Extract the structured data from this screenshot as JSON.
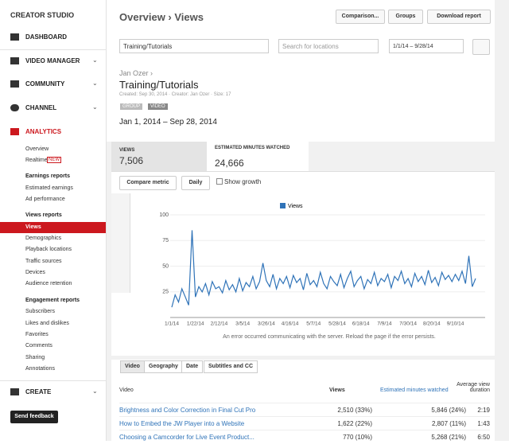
{
  "sidebar": {
    "brand": "CREATOR STUDIO",
    "dashboard": "DASHBOARD",
    "video_manager": "VIDEO MANAGER",
    "community": "COMMUNITY",
    "channel": "CHANNEL",
    "analytics": "ANALYTICS",
    "overview": "Overview",
    "realtime": "Realtime",
    "new_badge": "NEW",
    "earnings_reports": "Earnings reports",
    "earnings_links": [
      "Estimated earnings",
      "Ad performance"
    ],
    "views_reports": "Views reports",
    "views_links": [
      "Views",
      "Demographics",
      "Playback locations",
      "Traffic sources",
      "Devices",
      "Audience retention"
    ],
    "engagement_reports": "Engagement reports",
    "engagement_links": [
      "Subscribers",
      "Likes and dislikes",
      "Favorites",
      "Comments",
      "Sharing",
      "Annotations"
    ],
    "create": "CREATE",
    "send_feedback": "Send feedback"
  },
  "header": {
    "title": "Overview › Views",
    "buttons": [
      "Comparison...",
      "Groups",
      "Download report"
    ]
  },
  "filters": {
    "search_value": "Training/Tutorials",
    "location_placeholder": "Search for locations",
    "date_range": "1/1/14 – 9/28/14"
  },
  "group": {
    "owner": "Jan Ozer ›",
    "title": "Training/Tutorials",
    "meta": "Created: Sep 30, 2014 · Creator: Jan Ozer · Size: 17",
    "tags": [
      "GROUP",
      "VIDEO"
    ],
    "period": "Jan 1, 2014 – Sep 28, 2014"
  },
  "metrics": [
    {
      "label": "VIEWS",
      "value": "7,506"
    },
    {
      "label": "ESTIMATED MINUTES WATCHED",
      "value": "24,666"
    }
  ],
  "controls": {
    "compare": "Compare metric",
    "interval": "Daily",
    "growth": "Show growth"
  },
  "chart_data": {
    "type": "line",
    "ylim": [
      0,
      100
    ],
    "yticks": [
      25,
      50,
      75,
      100
    ],
    "categories": [
      "1/1/14",
      null,
      null,
      null,
      null,
      null,
      null,
      "1/22/14",
      null,
      null,
      null,
      null,
      null,
      null,
      "2/12/14",
      null,
      null,
      null,
      null,
      null,
      null,
      "3/5/14",
      null,
      null,
      null,
      null,
      null,
      null,
      "3/26/14",
      null,
      null,
      null,
      null,
      null,
      null,
      "4/16/14",
      null,
      null,
      null,
      null,
      null,
      null,
      "5/7/14",
      null,
      null,
      null,
      null,
      null,
      null,
      "5/28/14",
      null,
      null,
      null,
      null,
      null,
      null,
      "6/18/14",
      null,
      null,
      null,
      null,
      null,
      null,
      "7/9/14",
      null,
      null,
      null,
      null,
      null,
      null,
      "7/30/14",
      null,
      null,
      null,
      null,
      null,
      null,
      "8/20/14",
      null,
      null,
      null,
      null,
      null,
      null,
      "9/10/14",
      null,
      null,
      null,
      null,
      null,
      null
    ],
    "series": [
      {
        "name": "Views",
        "color": "#2f73b8",
        "values": [
          10,
          22,
          15,
          28,
          20,
          12,
          85,
          20,
          30,
          25,
          33,
          22,
          35,
          28,
          30,
          24,
          36,
          27,
          32,
          25,
          38,
          26,
          34,
          30,
          40,
          28,
          35,
          53,
          36,
          30,
          42,
          28,
          38,
          33,
          40,
          29,
          41,
          34,
          38,
          27,
          43,
          32,
          36,
          30,
          44,
          33,
          28,
          40,
          35,
          31,
          42,
          29,
          38,
          45,
          30,
          36,
          40,
          28,
          37,
          33,
          44,
          31,
          38,
          35,
          42,
          29,
          40,
          36,
          45,
          33,
          38,
          30,
          43,
          35,
          40,
          32,
          46,
          34,
          39,
          31,
          44,
          37,
          41,
          35,
          42,
          36,
          45,
          33,
          60,
          30,
          38
        ]
      }
    ],
    "error": "An error occurred communicating with the server. Reload the page if the error persists."
  },
  "tabs": [
    "Video",
    "Geography",
    "Date",
    "Subtitles and CC"
  ],
  "table": {
    "columns": [
      "Video",
      "Views",
      "Estimated minutes watched",
      "Average view duration"
    ],
    "rows": [
      [
        "Brightness and Color Correction in Final Cut Pro",
        "2,510 (33%)",
        "5,846 (24%)",
        "2:19"
      ],
      [
        "How to Embed the JW Player into a Website",
        "1,622 (22%)",
        "2,807 (11%)",
        "1:43"
      ],
      [
        "Choosing a Camcorder for Live Event Product...",
        "770 (10%)",
        "5,268 (21%)",
        "6:50"
      ]
    ]
  }
}
